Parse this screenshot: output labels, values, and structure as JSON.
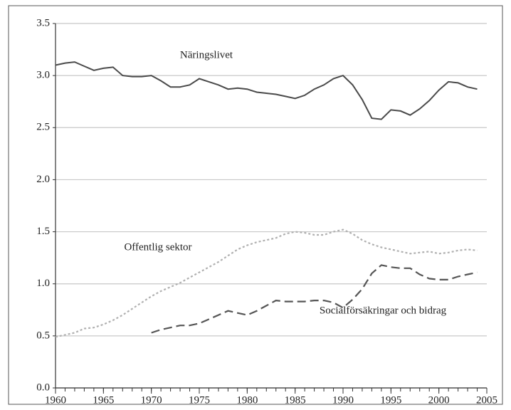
{
  "chart_data": {
    "type": "line",
    "annotations": [
      "Näringslivet",
      "Offentlig sektor",
      "Socialförsäkringar och bidrag"
    ],
    "x": [
      1960,
      1961,
      1962,
      1963,
      1964,
      1965,
      1966,
      1967,
      1968,
      1969,
      1970,
      1971,
      1972,
      1973,
      1974,
      1975,
      1976,
      1977,
      1978,
      1979,
      1980,
      1981,
      1982,
      1983,
      1984,
      1985,
      1986,
      1987,
      1988,
      1989,
      1990,
      1991,
      1992,
      1993,
      1994,
      1995,
      1996,
      1997,
      1998,
      1999,
      2000,
      2001,
      2002,
      2003,
      2004
    ],
    "series": [
      {
        "name": "Näringslivet",
        "color": "#4a4a4a",
        "style": "solid",
        "values": [
          3.1,
          3.12,
          3.13,
          3.09,
          3.05,
          3.07,
          3.08,
          3.0,
          2.99,
          2.99,
          3.0,
          2.95,
          2.89,
          2.89,
          2.91,
          2.97,
          2.94,
          2.91,
          2.87,
          2.88,
          2.87,
          2.84,
          2.83,
          2.82,
          2.8,
          2.78,
          2.81,
          2.87,
          2.91,
          2.97,
          3.0,
          2.91,
          2.77,
          2.59,
          2.58,
          2.67,
          2.66,
          2.62,
          2.68,
          2.76,
          2.86,
          2.94,
          2.93,
          2.89,
          2.87
        ]
      },
      {
        "name": "Offentlig sektor",
        "color": "#b0b0b0",
        "style": "dotted",
        "values": [
          0.49,
          0.51,
          0.53,
          0.57,
          0.58,
          0.61,
          0.65,
          0.7,
          0.76,
          0.82,
          0.88,
          0.93,
          0.97,
          1.01,
          1.06,
          1.11,
          1.16,
          1.21,
          1.27,
          1.33,
          1.37,
          1.4,
          1.42,
          1.44,
          1.48,
          1.5,
          1.49,
          1.47,
          1.47,
          1.5,
          1.52,
          1.48,
          1.42,
          1.38,
          1.35,
          1.33,
          1.31,
          1.29,
          1.3,
          1.31,
          1.29,
          1.3,
          1.32,
          1.33,
          1.32
        ]
      },
      {
        "name": "Socialförsäkringar och bidrag",
        "color": "#555555",
        "style": "dashed",
        "values": [
          null,
          null,
          null,
          null,
          null,
          null,
          null,
          null,
          null,
          null,
          0.53,
          0.56,
          0.58,
          0.6,
          0.6,
          0.62,
          0.66,
          0.7,
          0.74,
          0.72,
          0.7,
          0.74,
          0.79,
          0.84,
          0.83,
          0.83,
          0.83,
          0.84,
          0.84,
          0.82,
          0.77,
          0.85,
          0.95,
          1.1,
          1.18,
          1.16,
          1.15,
          1.15,
          1.09,
          1.05,
          1.04,
          1.04,
          1.07,
          1.09,
          1.11
        ]
      }
    ],
    "xlim": [
      1960,
      2005
    ],
    "xticks": [
      1960,
      1965,
      1970,
      1975,
      1980,
      1985,
      1990,
      1995,
      2000,
      2005
    ],
    "ylim": [
      0,
      3.5
    ],
    "yticks": [
      {
        "value": 0,
        "label": "0.0"
      },
      0.5,
      {
        "value": 1,
        "label": "1.0"
      },
      1.5,
      {
        "value": 2,
        "label": "2.0"
      },
      2.5,
      {
        "value": 3,
        "label": "3.0"
      },
      3.5
    ],
    "grid": true
  }
}
